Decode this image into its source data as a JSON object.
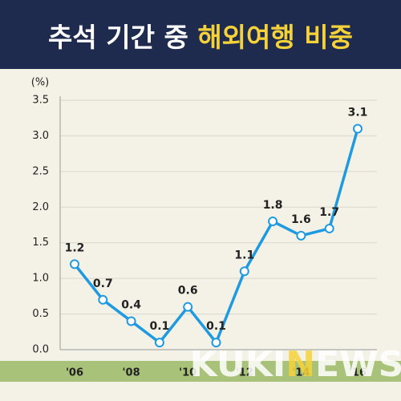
{
  "chart_data": {
    "type": "line",
    "title": [
      "추석 기간 중",
      "해외여행 비중"
    ],
    "y_label": "(%)",
    "watermark": [
      "KUKI",
      "N",
      "EWS"
    ],
    "categories": [
      "'06",
      null,
      "'08",
      null,
      "'10",
      null,
      "'12",
      null,
      "'14",
      null,
      "'16"
    ],
    "series": [
      {
        "name": "해외여행 비중",
        "color": "#1f9ae0",
        "values": [
          1.2,
          0.7,
          0.4,
          0.1,
          0.6,
          0.1,
          1.1,
          1.8,
          1.6,
          1.7,
          3.1
        ]
      }
    ],
    "ylim": [
      0,
      3.5
    ],
    "yticks": [
      {
        "value": 0,
        "label": "0.0"
      },
      0.5,
      {
        "value": 1,
        "label": "1.0"
      },
      1.5,
      {
        "value": 2,
        "label": "2.0"
      },
      2.5,
      {
        "value": 3,
        "label": "3.0"
      },
      3.5
    ]
  }
}
